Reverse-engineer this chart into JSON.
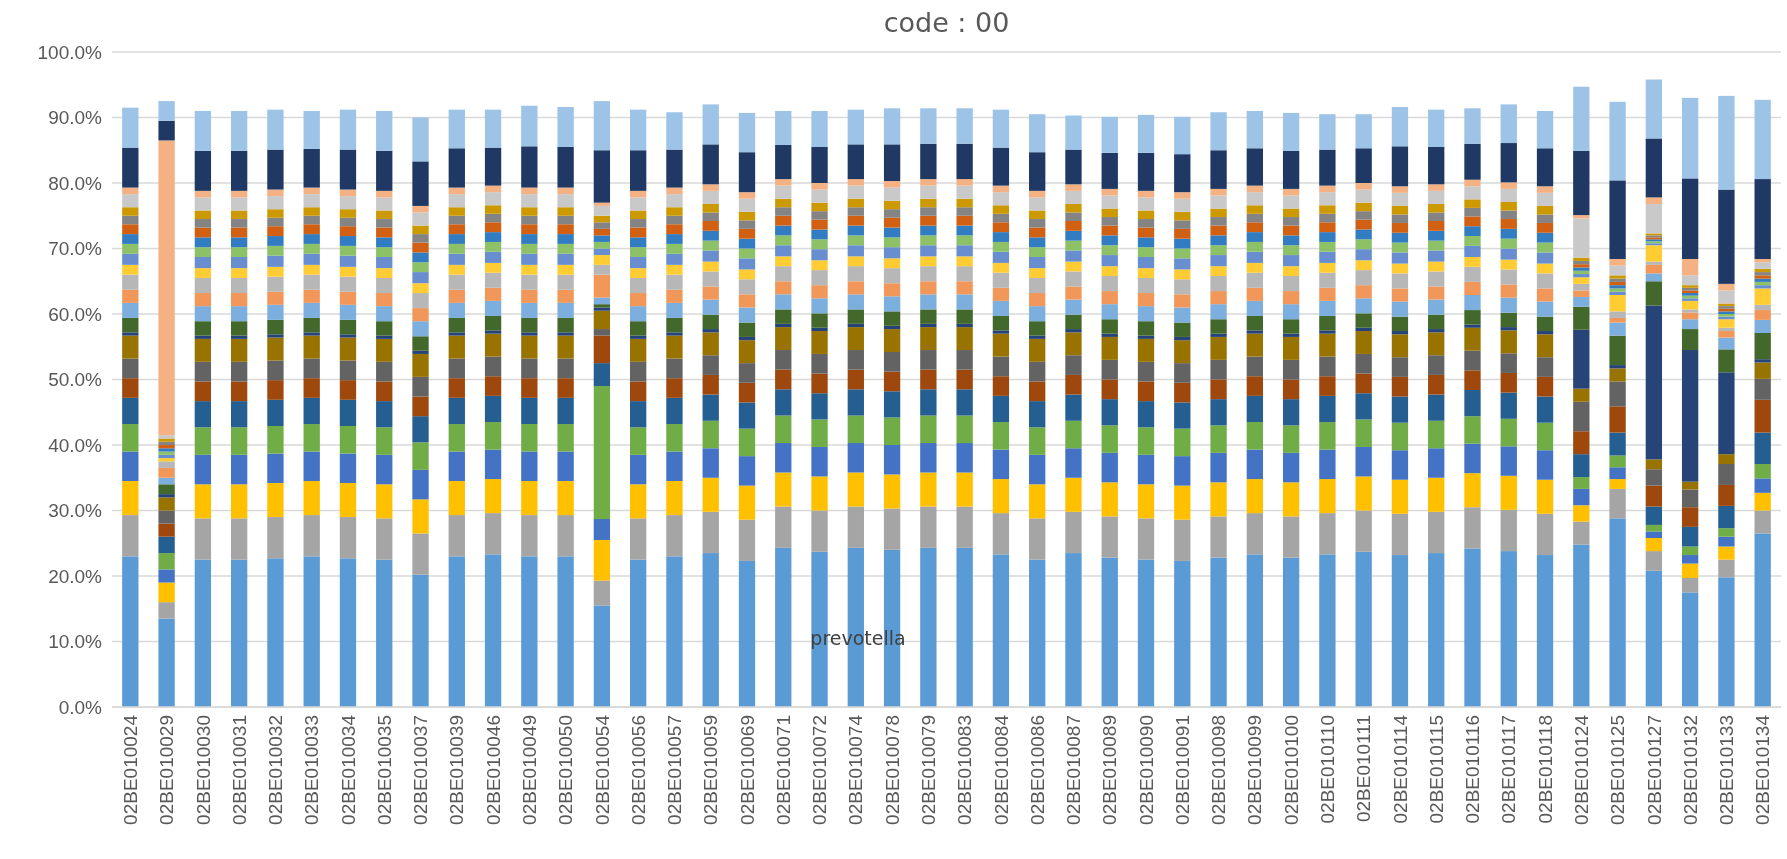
{
  "chart_data": {
    "type": "bar",
    "stacked": true,
    "title": "code : 00",
    "grid": "y",
    "categories": [
      "02BE010024",
      "02BE010029",
      "02BE010030",
      "02BE010031",
      "02BE010032",
      "02BE010033",
      "02BE010034",
      "02BE010035",
      "02BE010037",
      "02BE010039",
      "02BE010046",
      "02BE010049",
      "02BE010050",
      "02BE010054",
      "02BE010056",
      "02BE010057",
      "02BE010059",
      "02BE010069",
      "02BE010071",
      "02BE010072",
      "02BE010074",
      "02BE010078",
      "02BE010079",
      "02BE010083",
      "02BE010084",
      "02BE010086",
      "02BE010087",
      "02BE010089",
      "02BE010090",
      "02BE010091",
      "02BE010098",
      "02BE010099",
      "02BE010100",
      "02BE010110",
      "02BE010111",
      "02BE010114",
      "02BE010115",
      "02BE010116",
      "02BE010117",
      "02BE010118",
      "02BE010124",
      "02BE010125",
      "02BE010127",
      "02BE010132",
      "02BE010133",
      "02BE010134"
    ],
    "ylim": [
      0,
      100
    ],
    "yticks": [
      {
        "value": 0,
        "label": "0.0%"
      },
      {
        "value": 10,
        "label": "10.0%"
      },
      {
        "value": 20,
        "label": "20.0%"
      },
      {
        "value": 30,
        "label": "30.0%"
      },
      {
        "value": 40,
        "label": "40.0%"
      },
      {
        "value": 50,
        "label": "50.0%"
      },
      {
        "value": 60,
        "label": "60.0%"
      },
      {
        "value": 70,
        "label": "70.0%"
      },
      {
        "value": 80,
        "label": "80.0%"
      },
      {
        "value": 90,
        "label": "90.0%"
      },
      {
        "value": 100,
        "label": "100.0%"
      }
    ],
    "annotations": [
      "prevotella"
    ],
    "series": [
      {
        "color": "#5b9bd5",
        "values": [
          23,
          13.5,
          22.5,
          22.5,
          22.7,
          23,
          22.7,
          22.5,
          20.2,
          23,
          23.3,
          23,
          23,
          15.5,
          22.5,
          23,
          23.5,
          22.3,
          24.3,
          23.7,
          24.3,
          24,
          24.3,
          24.3,
          23.3,
          22.5,
          23.5,
          22.8,
          22.5,
          22.3,
          22.8,
          23.3,
          22.8,
          23.3,
          23.7,
          23.2,
          23.5,
          24.2,
          23.8,
          23.2,
          24.8,
          28.8,
          20.8,
          17.5,
          19.8,
          26.5
        ]
      },
      {
        "color": "#a5a5a5",
        "values": [
          6.3,
          2.5,
          6.3,
          6.3,
          6.3,
          6.3,
          6.3,
          6.3,
          6.3,
          6.3,
          6.3,
          6.3,
          6.3,
          3.8,
          6.3,
          6.3,
          6.3,
          6.3,
          6.3,
          6.3,
          6.3,
          6.3,
          6.3,
          6.3,
          6.3,
          6.3,
          6.3,
          6.3,
          6.3,
          6.3,
          6.3,
          6.3,
          6.3,
          6.3,
          6.3,
          6.3,
          6.3,
          6.3,
          6.3,
          6.3,
          3.5,
          4.5,
          3,
          2.2,
          2.7,
          3.5
        ]
      },
      {
        "color": "#ffc000",
        "values": [
          5.2,
          3,
          5.2,
          5.2,
          5.2,
          5.2,
          5.2,
          5.2,
          5.2,
          5.2,
          5.2,
          5.2,
          5.2,
          6.2,
          5.2,
          5.2,
          5.2,
          5.2,
          5.2,
          5.2,
          5.2,
          5.2,
          5.2,
          5.2,
          5.2,
          5.2,
          5.2,
          5.2,
          5.2,
          5.2,
          5.2,
          5.2,
          5.2,
          5.2,
          5.2,
          5.2,
          5.2,
          5.2,
          5.2,
          5.2,
          2.5,
          1.5,
          2,
          2.2,
          2,
          2.7
        ]
      },
      {
        "color": "#4472c4",
        "values": [
          4.5,
          2,
          4.5,
          4.5,
          4.5,
          4.5,
          4.5,
          4.5,
          4.5,
          4.5,
          4.5,
          4.5,
          4.5,
          3.2,
          4.5,
          4.5,
          4.5,
          4.5,
          4.5,
          4.5,
          4.5,
          4.5,
          4.5,
          4.5,
          4.5,
          4.5,
          4.5,
          4.5,
          4.5,
          4.5,
          4.5,
          4.5,
          4.5,
          4.5,
          4.5,
          4.5,
          4.5,
          4.5,
          4.5,
          4.5,
          2.5,
          1.8,
          1,
          1.3,
          1.5,
          2.2
        ]
      },
      {
        "color": "#70ad47",
        "values": [
          4.2,
          2.5,
          4.2,
          4.2,
          4.2,
          4.2,
          4.2,
          4.2,
          4.2,
          4.2,
          4.2,
          4.2,
          4.2,
          20.3,
          4.2,
          4.2,
          4.2,
          4.2,
          4.2,
          4.2,
          4.2,
          4.2,
          4.2,
          4.2,
          4.2,
          4.2,
          4.2,
          4.2,
          4.2,
          4.2,
          4.2,
          4.2,
          4.2,
          4.2,
          4.2,
          4.2,
          4.2,
          4.2,
          4.2,
          4.2,
          1.8,
          1.8,
          1,
          1.3,
          1.3,
          2.2
        ]
      },
      {
        "color": "#255e91",
        "values": [
          4,
          2.5,
          4,
          4,
          4,
          4,
          4,
          4,
          4,
          4,
          4,
          4,
          4,
          3.5,
          4,
          4,
          4,
          4,
          4,
          4,
          4,
          4,
          4,
          4,
          4,
          4,
          4,
          4,
          4,
          4,
          4,
          4,
          4,
          4,
          4,
          4,
          4,
          4,
          4,
          4,
          3.5,
          3.5,
          2.8,
          3,
          3.4,
          4.8
        ]
      },
      {
        "color": "#9e480e",
        "values": [
          3,
          2,
          3,
          3,
          3,
          3,
          3,
          3,
          3,
          3,
          3,
          3,
          3,
          4.2,
          3,
          3,
          3,
          3,
          3,
          3,
          3,
          3,
          3,
          3,
          3,
          3,
          3,
          3,
          3,
          3,
          3,
          3,
          3,
          3,
          3,
          3,
          3,
          3,
          3,
          3,
          3.5,
          4,
          3.2,
          3,
          3.2,
          5
        ]
      },
      {
        "color": "#636363",
        "values": [
          3,
          2,
          3,
          3,
          3,
          3,
          3,
          3,
          3,
          3,
          3,
          3,
          3,
          1,
          3,
          3,
          3,
          3,
          3,
          3,
          3,
          3,
          3,
          3,
          3,
          3,
          3,
          3,
          3,
          3,
          3,
          3,
          3,
          3,
          3,
          3,
          3,
          3,
          3,
          3,
          4.5,
          3.8,
          2.5,
          2.7,
          3.2,
          3.2
        ]
      },
      {
        "color": "#997300",
        "values": [
          3.5,
          2,
          3.5,
          3.5,
          3.5,
          3.5,
          3.5,
          3.5,
          3.5,
          3.5,
          3.5,
          3.5,
          3.5,
          2.8,
          3.5,
          3.5,
          3.5,
          3.5,
          3.5,
          3.5,
          3.5,
          3.5,
          3.5,
          3.5,
          3.5,
          3.5,
          3.5,
          3.5,
          3.5,
          3.5,
          3.5,
          3.5,
          3.5,
          3.5,
          3.5,
          3.5,
          3.5,
          3.5,
          3.5,
          3.5,
          2,
          2,
          1.5,
          1.2,
          1.5,
          2.5
        ]
      },
      {
        "color": "#264478",
        "values": [
          0.5,
          0.5,
          0.5,
          0.5,
          0.5,
          0.5,
          0.5,
          0.5,
          0.5,
          0.5,
          0.5,
          0.5,
          0.5,
          0.5,
          0.5,
          0.5,
          0.5,
          0.5,
          0.5,
          0.5,
          0.5,
          0.5,
          0.5,
          0.5,
          0.5,
          0.5,
          0.5,
          0.5,
          0.5,
          0.5,
          0.5,
          0.5,
          0.5,
          0.5,
          0.5,
          0.5,
          0.5,
          0.5,
          0.5,
          0.5,
          9,
          0.5,
          23.5,
          20.1,
          12.5,
          0.5
        ]
      },
      {
        "color": "#43682b",
        "values": [
          2.2,
          1.5,
          2.2,
          2.2,
          2.2,
          2.2,
          2.2,
          2.2,
          2.2,
          2.2,
          2.2,
          2.2,
          2.2,
          0.5,
          2.2,
          2.2,
          2.2,
          2.2,
          2.2,
          2.2,
          2.2,
          2.2,
          2.2,
          2.2,
          2.2,
          2.2,
          2.2,
          2.2,
          2.2,
          2.2,
          2.2,
          2.2,
          2.2,
          2.2,
          2.2,
          2.2,
          2.2,
          2.2,
          2.2,
          2.2,
          3.5,
          4.5,
          3.7,
          3.2,
          3.5,
          4
        ]
      },
      {
        "color": "#7cafdd",
        "values": [
          2.3,
          1,
          2.3,
          2.3,
          2.3,
          2.3,
          2.3,
          2.3,
          2.3,
          2.3,
          2.3,
          2.3,
          2.3,
          1,
          2.3,
          2.3,
          2.3,
          2.3,
          2.3,
          2.3,
          2.3,
          2.3,
          2.3,
          2.3,
          2.3,
          2.3,
          2.3,
          2.3,
          2.3,
          2.3,
          2.3,
          2.3,
          2.3,
          2.3,
          2.3,
          2.3,
          2.3,
          2.3,
          2.3,
          2.3,
          1.5,
          2,
          1.2,
          1.5,
          1.8,
          2
        ]
      },
      {
        "color": "#f1975a",
        "values": [
          2,
          1.5,
          2,
          2,
          2,
          2,
          2,
          2,
          2,
          2,
          2,
          2,
          2,
          3.5,
          2,
          2,
          2,
          2,
          2,
          2,
          2,
          2,
          2,
          2,
          2,
          2,
          2,
          2,
          2,
          2,
          2,
          2,
          2,
          2,
          2,
          2,
          2,
          2,
          2,
          2,
          1,
          0.7,
          1.3,
          1,
          1,
          1.5
        ]
      },
      {
        "color": "#b7b7b7",
        "values": [
          2.3,
          1,
          2.3,
          2.3,
          2.3,
          2.3,
          2.3,
          2.3,
          2.3,
          2.3,
          2.3,
          2.3,
          2.3,
          1.5,
          2.3,
          2.3,
          2.3,
          2.3,
          2.3,
          2.3,
          2.3,
          2.3,
          2.3,
          2.3,
          2.3,
          2.3,
          2.3,
          2.3,
          2.3,
          2.3,
          2.3,
          2.3,
          2.3,
          2.3,
          2.3,
          2.3,
          2.3,
          2.3,
          2.3,
          2.3,
          1,
          1,
          0.5,
          0.5,
          0.5,
          0.8
        ]
      },
      {
        "color": "#ffcd33",
        "values": [
          1.5,
          0.5,
          1.5,
          1.5,
          1.5,
          1.5,
          1.5,
          1.5,
          1.5,
          1.5,
          1.5,
          1.5,
          1.5,
          1.5,
          1.5,
          1.5,
          1.5,
          1.5,
          1.5,
          1.5,
          1.5,
          1.5,
          1.5,
          1.5,
          1.5,
          1.5,
          1.5,
          1.5,
          1.5,
          1.5,
          1.5,
          1.5,
          1.5,
          1.5,
          1.5,
          1.5,
          1.5,
          1.5,
          1.5,
          1.5,
          1,
          2.5,
          2.5,
          1.3,
          1.3,
          2.5
        ]
      },
      {
        "color": "#698ed0",
        "values": [
          1.7,
          0.5,
          1.7,
          1.7,
          1.7,
          1.7,
          1.7,
          1.7,
          1.7,
          1.7,
          1.7,
          1.7,
          1.7,
          1,
          1.7,
          1.7,
          1.7,
          1.7,
          1.7,
          1.7,
          1.7,
          1.7,
          1.7,
          1.7,
          1.7,
          1.7,
          1.7,
          1.7,
          1.7,
          1.7,
          1.7,
          1.7,
          1.7,
          1.7,
          1.7,
          1.7,
          1.7,
          1.7,
          1.7,
          1.7,
          0.5,
          0.5,
          0.3,
          0.4,
          0.4,
          0.5
        ]
      },
      {
        "color": "#8cc168",
        "values": [
          1.5,
          0.5,
          1.5,
          1.5,
          1.5,
          1.5,
          1.5,
          1.5,
          1.5,
          1.5,
          1.5,
          1.5,
          1.5,
          1,
          1.5,
          1.5,
          1.5,
          1.5,
          1.5,
          1.5,
          1.5,
          1.5,
          1.5,
          1.5,
          1.5,
          1.5,
          1.5,
          1.5,
          1.5,
          1.5,
          1.5,
          1.5,
          1.5,
          1.5,
          1.5,
          1.5,
          1.5,
          1.5,
          1.5,
          1.5,
          0.5,
          0.5,
          0.3,
          0.4,
          0.4,
          0.5
        ]
      },
      {
        "color": "#327dc2",
        "values": [
          1.5,
          0.5,
          1.5,
          1.5,
          1.5,
          1.5,
          1.5,
          1.5,
          1.5,
          1.5,
          1.5,
          1.5,
          1.5,
          1,
          1.5,
          1.5,
          1.5,
          1.5,
          1.5,
          1.5,
          1.5,
          1.5,
          1.5,
          1.5,
          1.5,
          1.5,
          1.5,
          1.5,
          1.5,
          1.5,
          1.5,
          1.5,
          1.5,
          1.5,
          1.5,
          1.5,
          1.5,
          1.5,
          1.5,
          1.5,
          0.5,
          0.5,
          0.3,
          0.4,
          0.4,
          0.5
        ]
      },
      {
        "color": "#d26012",
        "values": [
          1.5,
          0.5,
          1.5,
          1.5,
          1.5,
          1.5,
          1.5,
          1.5,
          1.5,
          1.5,
          1.5,
          1.5,
          1.5,
          1,
          1.5,
          1.5,
          1.5,
          1.5,
          1.5,
          1.5,
          1.5,
          1.5,
          1.5,
          1.5,
          1.5,
          1.5,
          1.5,
          1.5,
          1.5,
          1.5,
          1.5,
          1.5,
          1.5,
          1.5,
          1.5,
          1.5,
          1.5,
          1.5,
          1.5,
          1.5,
          0.5,
          0.5,
          0.3,
          0.4,
          0.4,
          0.5
        ]
      },
      {
        "color": "#848484",
        "values": [
          1.3,
          0.5,
          1.3,
          1.3,
          1.3,
          1.3,
          1.3,
          1.3,
          1.3,
          1.3,
          1.3,
          1.3,
          1.3,
          1,
          1.3,
          1.3,
          1.3,
          1.3,
          1.3,
          1.3,
          1.3,
          1.3,
          1.3,
          1.3,
          1.3,
          1.3,
          1.3,
          1.3,
          1.3,
          1.3,
          1.3,
          1.3,
          1.3,
          1.3,
          1.3,
          1.3,
          1.3,
          1.3,
          1.3,
          1.3,
          0.5,
          0.5,
          0.3,
          0.4,
          0.4,
          0.5
        ]
      },
      {
        "color": "#cc9a00",
        "values": [
          1.3,
          0.5,
          1.3,
          1.3,
          1.3,
          1.3,
          1.3,
          1.3,
          1.3,
          1.3,
          1.3,
          1.3,
          1.3,
          1,
          1.3,
          1.3,
          1.3,
          1.3,
          1.3,
          1.3,
          1.3,
          1.3,
          1.3,
          1.3,
          1.3,
          1.3,
          1.3,
          1.3,
          1.3,
          1.3,
          1.3,
          1.3,
          1.3,
          1.3,
          1.3,
          1.3,
          1.3,
          1.3,
          1.3,
          1.3,
          0.5,
          0.5,
          0.3,
          0.4,
          0.4,
          0.5
        ]
      },
      {
        "color": "#c9c9c9",
        "values": [
          2,
          0.5,
          2,
          2,
          2,
          2,
          2,
          2,
          2,
          2,
          2,
          2,
          2,
          1.5,
          2,
          2,
          2,
          2,
          2,
          2,
          2,
          2,
          2,
          2,
          2,
          2,
          2,
          2,
          2,
          2,
          2,
          2,
          2,
          2,
          2,
          2,
          2,
          2,
          2,
          2,
          6,
          1.5,
          4.5,
          1.5,
          2,
          1
        ]
      },
      {
        "color": "#f4b183",
        "values": [
          1,
          45,
          1,
          1,
          1,
          1,
          1,
          1,
          1,
          1,
          1,
          1,
          1,
          0.5,
          1,
          1,
          1,
          1,
          1,
          1,
          1,
          1,
          1,
          1,
          1,
          1,
          1,
          1,
          1,
          1,
          1,
          1,
          1,
          1,
          1,
          1,
          1,
          1,
          1,
          1,
          0.5,
          1,
          1,
          2.5,
          1,
          0.5
        ]
      },
      {
        "color": "#1f3864",
        "values": [
          6.1,
          3,
          6.1,
          6.1,
          6.1,
          5.9,
          6.1,
          6.1,
          6.8,
          6,
          5.8,
          6.3,
          6.2,
          8,
          6.2,
          5.8,
          6.1,
          6.1,
          5.2,
          5.5,
          5.3,
          5.6,
          5.4,
          5.4,
          5.8,
          5.9,
          5.3,
          5.5,
          5.8,
          5.8,
          5.9,
          5.7,
          5.8,
          5.5,
          5.3,
          6.1,
          5.7,
          5.5,
          6,
          5.8,
          9.8,
          12,
          9,
          12.3,
          14.4,
          12.2
        ]
      },
      {
        "color": "#9dc3e6",
        "values": [
          6.1,
          3,
          6.1,
          6.1,
          6.1,
          5.8,
          6.1,
          6.1,
          6.7,
          5.9,
          5.8,
          6.2,
          6.1,
          7.5,
          6.2,
          5.7,
          6.1,
          6,
          5.2,
          5.5,
          5.3,
          5.5,
          5.4,
          5.4,
          5.8,
          5.8,
          5.2,
          5.5,
          5.8,
          5.7,
          5.8,
          5.7,
          5.8,
          5.4,
          5.2,
          6,
          5.7,
          5.4,
          5.9,
          5.7,
          9.8,
          12,
          9,
          12.3,
          14.3,
          12.1
        ]
      }
    ]
  }
}
